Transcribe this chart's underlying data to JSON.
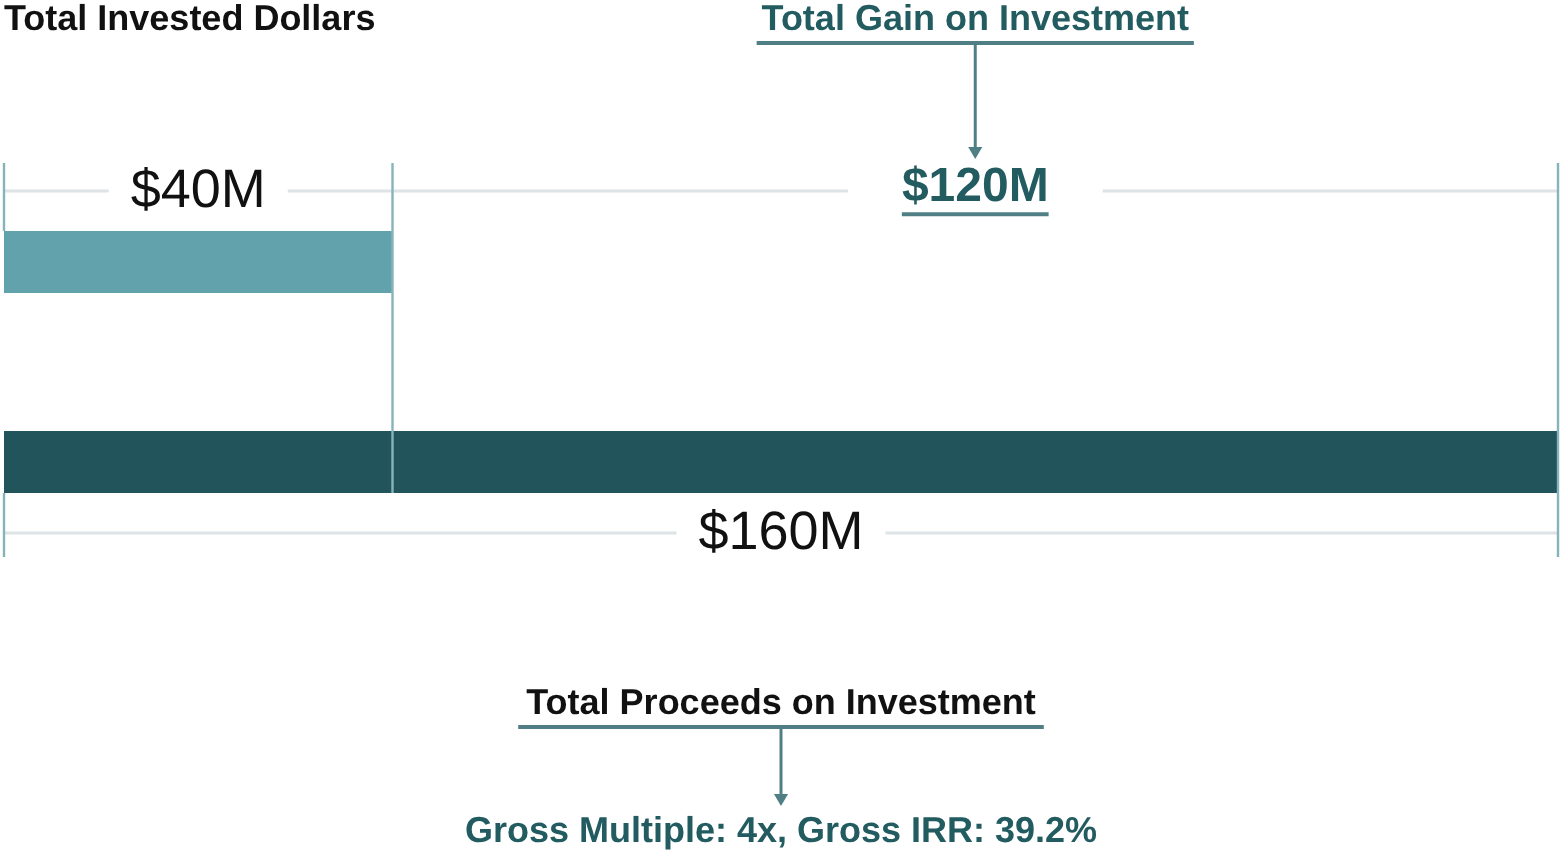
{
  "chart_data": {
    "type": "bar",
    "orientation": "horizontal",
    "categories": [
      null,
      null
    ],
    "values": [
      40,
      160
    ],
    "colors": [
      "#61a2ac",
      "#22555b"
    ],
    "value_labels": [
      "$40M",
      "$160M"
    ],
    "ref_lines": [
      {
        "axis": "x",
        "value": 40,
        "color": "#86b4bb"
      }
    ],
    "annotations": [
      "Total Invested Dollars",
      "Total Gain on Investment",
      "$120M",
      "Total Proceeds on Investment",
      "Gross Multiple:  4x, Gross IRR:  39.2%"
    ]
  }
}
